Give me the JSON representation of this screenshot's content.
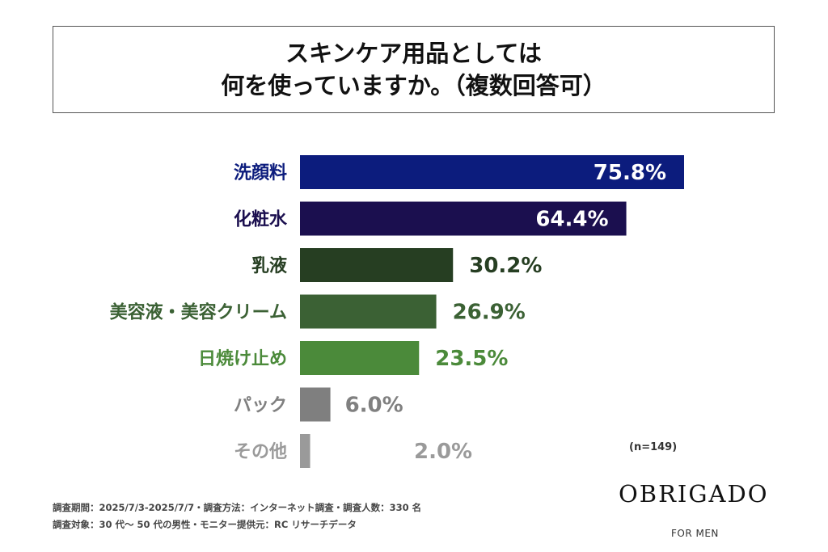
{
  "title": {
    "line1": "スキンケア用品としては",
    "line2": "何を使っていますか。（複数回答可）"
  },
  "chart_data": {
    "type": "bar",
    "orientation": "horizontal",
    "categories": [
      "洗顔料",
      "化粧水",
      "乳液",
      "美容液・美容クリーム",
      "日焼け止め",
      "パック",
      "その他"
    ],
    "values": [
      75.8,
      64.4,
      30.2,
      26.9,
      23.5,
      6.0,
      2.0
    ],
    "value_labels": [
      "75.8%",
      "64.4%",
      "30.2%",
      "26.9%",
      "23.5%",
      "6.0%",
      "2.0%"
    ],
    "bar_colors": [
      "#0c1c7d",
      "#1b0f4f",
      "#263e22",
      "#3b6134",
      "#4b8a3a",
      "#7f7f7f",
      "#9a9a9a"
    ],
    "label_colors": [
      "#0c1c7d",
      "#1b0f4f",
      "#263e22",
      "#3b6134",
      "#4b8a3a",
      "#808080",
      "#9a9a9a"
    ],
    "label_inside": [
      true,
      true,
      false,
      false,
      false,
      false,
      false
    ],
    "xlim": [
      0,
      100
    ],
    "n_label": "(n=149)"
  },
  "footer": {
    "line1": "調査期間：2025/7/3-2025/7/7・調査方法：インターネット調査・調査人数：330 名",
    "line2": "調査対象：30 代～ 50 代の男性・モニター提供元：RC リサーチデータ"
  },
  "brand": {
    "logo": "OBRIGADO",
    "sub": "FOR MEN"
  }
}
